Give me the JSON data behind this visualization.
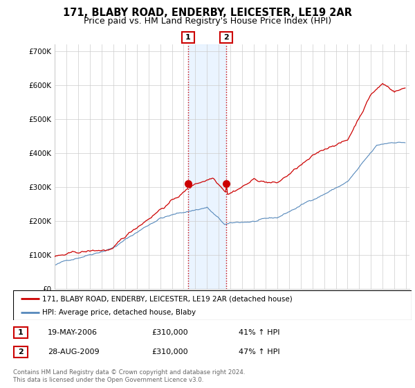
{
  "title": "171, BLABY ROAD, ENDERBY, LEICESTER, LE19 2AR",
  "subtitle": "Price paid vs. HM Land Registry's House Price Index (HPI)",
  "title_fontsize": 10.5,
  "subtitle_fontsize": 9,
  "ylabel_ticks": [
    "£0",
    "£100K",
    "£200K",
    "£300K",
    "£400K",
    "£500K",
    "£600K",
    "£700K"
  ],
  "ytick_values": [
    0,
    100000,
    200000,
    300000,
    400000,
    500000,
    600000,
    700000
  ],
  "ylim": [
    0,
    720000
  ],
  "xlim_start": 1995.0,
  "xlim_end": 2025.3,
  "hpi_color": "#5588bb",
  "price_color": "#cc0000",
  "shade_color": "#ddeeff",
  "shade_alpha": 0.6,
  "vline_color": "#cc0000",
  "vline_style": ":",
  "ann1_x": 2006.38,
  "ann2_x": 2009.65,
  "ann1_y": 310000,
  "ann2_y": 310000,
  "legend_line1": "171, BLABY ROAD, ENDERBY, LEICESTER, LE19 2AR (detached house)",
  "legend_line2": "HPI: Average price, detached house, Blaby",
  "table_rows": [
    {
      "num": "1",
      "date": "19-MAY-2006",
      "price": "£310,000",
      "hpi": "41% ↑ HPI"
    },
    {
      "num": "2",
      "date": "28-AUG-2009",
      "price": "£310,000",
      "hpi": "47% ↑ HPI"
    }
  ],
  "footer": "Contains HM Land Registry data © Crown copyright and database right 2024.\nThis data is licensed under the Open Government Licence v3.0.",
  "bg_color": "#ffffff",
  "grid_color": "#cccccc"
}
